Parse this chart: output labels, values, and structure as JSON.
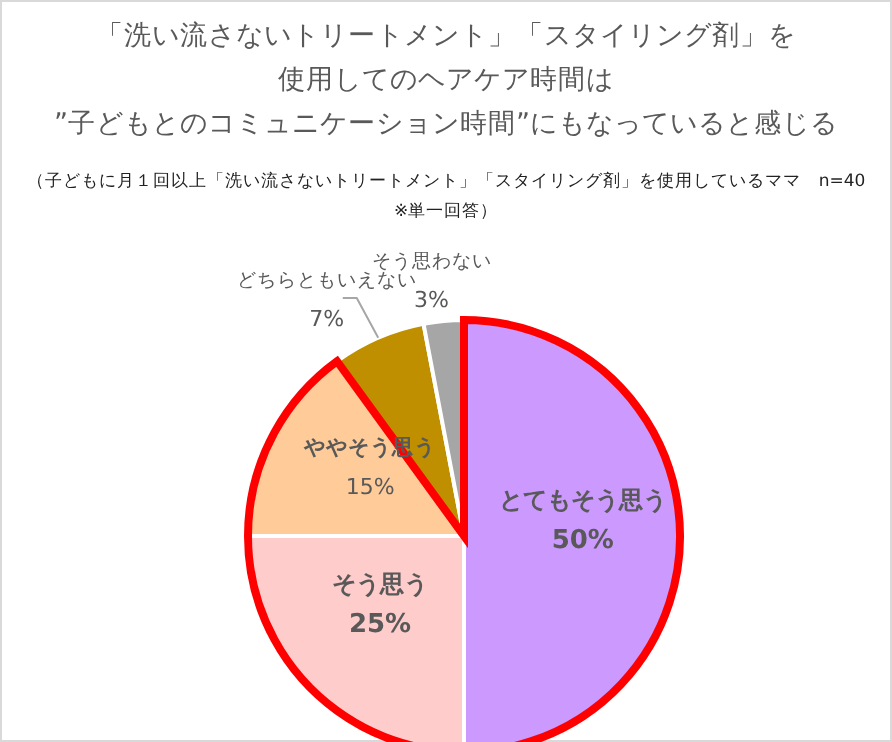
{
  "chart_data": {
    "type": "pie",
    "title": "「洗い流さないトリートメント」「スタイリング剤」を使用してのヘアケア時間は”子どもとのコミュニケーション時間”にもなっていると感じる",
    "subtitle": "（子どもに月１回以上「洗い流さないトリートメント」「スタイリング剤」を使用しているママ　n=40※単一回答）",
    "categories": [
      "とてもそう思う",
      "そう思う",
      "ややそう思う",
      "どちらともいえない",
      "そう思わない"
    ],
    "values": [
      50,
      25,
      15,
      7,
      3
    ],
    "value_labels": [
      "50%",
      "25%",
      "15%",
      "7%",
      "3%"
    ],
    "colors": [
      "#cc99ff",
      "#ffcccc",
      "#ffcc99",
      "#bf8f00",
      "#a6a6a6"
    ]
  }
}
